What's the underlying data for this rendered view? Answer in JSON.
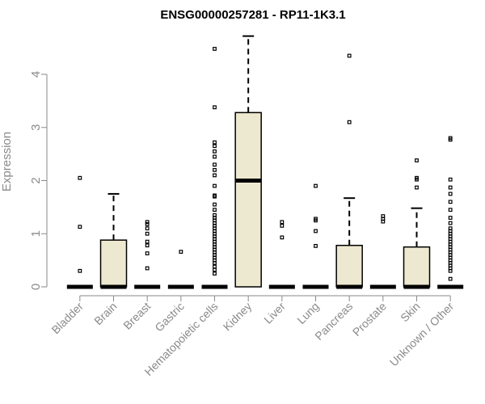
{
  "chart_data": {
    "type": "boxplot",
    "title": "ENSG00000257281 - RP11-1K3.1",
    "xlabel": "",
    "ylabel": "Expression",
    "ylim": [
      0,
      4.75
    ],
    "yticks": [
      0,
      1,
      2,
      3,
      4
    ],
    "grid": false,
    "box_color": "#ede8d0",
    "categories": [
      "Bladder",
      "Brain",
      "Breast",
      "Gastric",
      "Hematopoietic cells",
      "Kidney",
      "Liver",
      "Lung",
      "Pancreas",
      "Prostate",
      "Skin",
      "Unknown / Other"
    ],
    "boxes": [
      {
        "q1": 0,
        "median": 0,
        "q3": 0,
        "whisker_low": 0,
        "whisker_high": 0,
        "outliers": [
          0.3,
          1.13,
          2.05
        ]
      },
      {
        "q1": 0,
        "median": 0,
        "q3": 0.88,
        "whisker_low": 0,
        "whisker_high": 1.75,
        "outliers": []
      },
      {
        "q1": 0,
        "median": 0,
        "q3": 0,
        "whisker_low": 0,
        "whisker_high": 0,
        "outliers": [
          0.35,
          0.63,
          0.78,
          0.85,
          1.0,
          1.1,
          1.18,
          1.22
        ]
      },
      {
        "q1": 0,
        "median": 0,
        "q3": 0,
        "whisker_low": 0,
        "whisker_high": 0,
        "outliers": [
          0.66
        ]
      },
      {
        "q1": 0,
        "median": 0,
        "q3": 0,
        "whisker_low": 0,
        "whisker_high": 0,
        "outliers": [
          0.25,
          0.32,
          0.38,
          0.45,
          0.5,
          0.55,
          0.6,
          0.65,
          0.7,
          0.75,
          0.8,
          0.85,
          0.9,
          0.95,
          1.0,
          1.05,
          1.1,
          1.15,
          1.2,
          1.25,
          1.3,
          1.35,
          1.45,
          1.55,
          1.7,
          1.72,
          1.9,
          2.1,
          2.2,
          2.3,
          2.45,
          2.55,
          2.65,
          2.72,
          3.38,
          4.48
        ]
      },
      {
        "q1": 0,
        "median": 2.0,
        "q3": 3.28,
        "whisker_low": 0,
        "whisker_high": 4.72,
        "outliers": []
      },
      {
        "q1": 0,
        "median": 0,
        "q3": 0,
        "whisker_low": 0,
        "whisker_high": 0,
        "outliers": [
          0.93,
          1.15,
          1.22
        ]
      },
      {
        "q1": 0,
        "median": 0,
        "q3": 0,
        "whisker_low": 0,
        "whisker_high": 0,
        "outliers": [
          0.77,
          1.05,
          1.25,
          1.28,
          1.9
        ]
      },
      {
        "q1": 0,
        "median": 0,
        "q3": 0.78,
        "whisker_low": 0,
        "whisker_high": 1.67,
        "outliers": [
          3.1,
          4.35
        ]
      },
      {
        "q1": 0,
        "median": 0,
        "q3": 0,
        "whisker_low": 0,
        "whisker_high": 0,
        "outliers": [
          1.23,
          1.28,
          1.33
        ]
      },
      {
        "q1": 0,
        "median": 0,
        "q3": 0.75,
        "whisker_low": 0,
        "whisker_high": 1.48,
        "outliers": [
          1.87,
          2.02,
          2.05,
          2.38
        ]
      },
      {
        "q1": 0,
        "median": 0,
        "q3": 0,
        "whisker_low": 0,
        "whisker_high": 0,
        "outliers": [
          0.15,
          0.3,
          0.35,
          0.4,
          0.45,
          0.5,
          0.55,
          0.6,
          0.65,
          0.7,
          0.75,
          0.8,
          0.85,
          0.9,
          0.95,
          1.0,
          1.05,
          1.1,
          1.2,
          1.3,
          1.45,
          1.6,
          1.75,
          1.87,
          2.02,
          2.77,
          2.8
        ]
      }
    ]
  }
}
